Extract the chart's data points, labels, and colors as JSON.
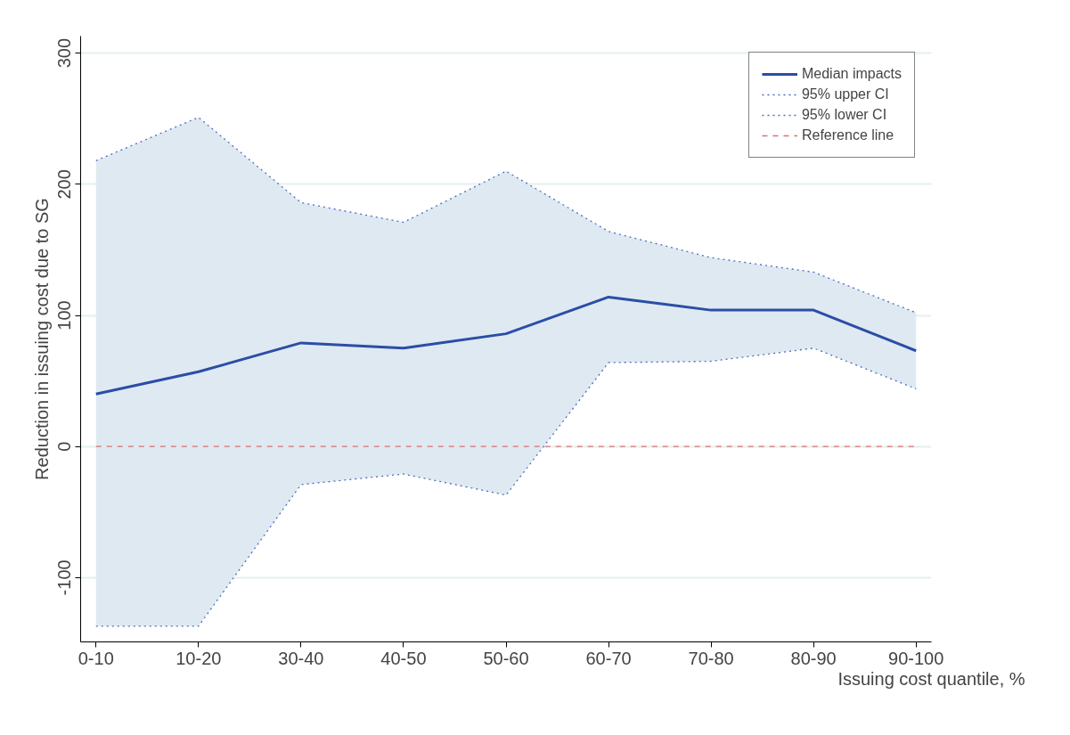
{
  "chart_data": {
    "type": "line",
    "xlabel": "Issuing cost quantile, %",
    "ylabel": "Reduction in issuing cost due to SG",
    "categories": [
      "0-10",
      "10-20",
      "30-40",
      "40-50",
      "50-60",
      "60-70",
      "70-80",
      "80-90",
      "90-100"
    ],
    "series": [
      {
        "name": "Median impacts",
        "color": "#2a4ea6",
        "line_style": "solid",
        "values": [
          40,
          57,
          79,
          75,
          86,
          114,
          104,
          104,
          73
        ],
        "lower": [
          -137,
          -137,
          -29,
          -21,
          -37,
          64,
          65,
          75,
          44
        ],
        "upper": [
          218,
          251,
          186,
          171,
          210,
          164,
          144,
          133,
          102
        ]
      },
      {
        "name": "95% upper CI",
        "color": "#4a6fc4",
        "line_style": "dotted",
        "values": [
          218,
          251,
          186,
          171,
          210,
          164,
          144,
          133,
          102
        ]
      },
      {
        "name": "95% lower CI",
        "color": "#4a6fc4",
        "line_style": "dotted",
        "values": [
          -137,
          -137,
          -29,
          -21,
          -37,
          64,
          65,
          75,
          44
        ]
      }
    ],
    "ref_lines": [
      {
        "axis": "y",
        "value": 0,
        "label": "Reference line",
        "color": "#d9706e",
        "line_style": "dashed"
      }
    ],
    "ylim": [
      -149,
      313
    ],
    "yticks": [
      -100,
      0,
      100,
      200,
      300
    ],
    "grid": "y",
    "legend": "top right",
    "marker": "none"
  }
}
